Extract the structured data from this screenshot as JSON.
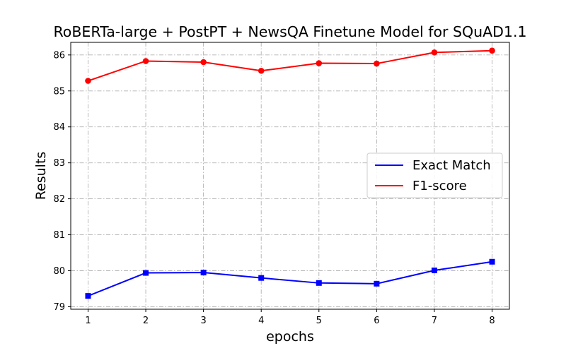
{
  "chart_data": {
    "type": "line",
    "title": "RoBERTa-large + PostPT + NewsQA Finetune Model for SQuAD1.1",
    "xlabel": "epochs",
    "ylabel": "Results",
    "x": [
      1,
      2,
      3,
      4,
      5,
      6,
      7,
      8
    ],
    "x_ticks": [
      "1",
      "2",
      "3",
      "4",
      "5",
      "6",
      "7",
      "8"
    ],
    "y_ticks": [
      "79",
      "80",
      "81",
      "82",
      "83",
      "84",
      "85",
      "86"
    ],
    "xlim": [
      0.7,
      8.3
    ],
    "ylim": [
      78.93,
      86.35
    ],
    "grid": true,
    "legend_position": "center-right",
    "series": [
      {
        "name": "Exact Match",
        "color": "#0000ff",
        "marker": "square",
        "values": [
          79.3,
          79.94,
          79.95,
          79.8,
          79.66,
          79.64,
          80.01,
          80.25
        ]
      },
      {
        "name": "F1-score",
        "color": "#ff0000",
        "marker": "circle",
        "values": [
          85.28,
          85.83,
          85.8,
          85.56,
          85.77,
          85.76,
          86.07,
          86.12
        ]
      }
    ]
  }
}
